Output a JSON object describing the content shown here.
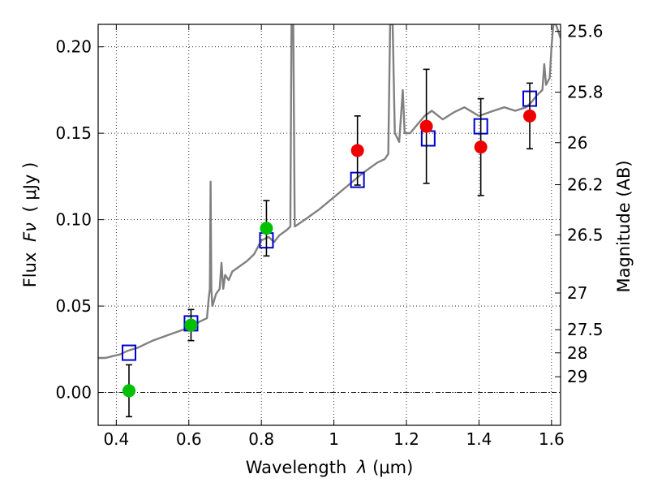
{
  "chart_data": {
    "type": "scatter",
    "xlabel_prefix": "Wavelength",
    "xlabel_symbol": "λ",
    "xlabel_unit": "(μm)",
    "ylabel_prefix": "Flux",
    "ylabel_symbol": "Fν",
    "ylabel_unit": "( μJy )",
    "y2label": "Magnitude (AB)",
    "xlim": [
      0.35,
      1.625
    ],
    "ylim": [
      -0.019,
      0.213
    ],
    "grid": true,
    "x_ticks": [
      0.4,
      0.6,
      0.8,
      1.0,
      1.2,
      1.4,
      1.6
    ],
    "x_tick_labels": [
      "0.4",
      "0.6",
      "0.8",
      "1",
      "1.2",
      "1.4",
      "1.6"
    ],
    "y_ticks": [
      0.0,
      0.05,
      0.1,
      0.15,
      0.2
    ],
    "y_tick_labels": [
      "0.00",
      "0.05",
      "0.10",
      "0.15",
      "0.20"
    ],
    "mag_ticks": [
      25.6,
      25.8,
      26,
      26.2,
      26.5,
      27,
      27.5,
      28,
      29
    ],
    "mag_tick_labels": [
      "25.6",
      "25.8",
      "26",
      "26.2",
      "26.5",
      "27",
      "27.5",
      "28",
      "29"
    ],
    "zero_line": 0.0,
    "colors": {
      "spectrum": "#808080",
      "model_box": "#0000cc",
      "optical": "#00c000",
      "infrared": "#ee0000",
      "errorbar": "#000000"
    },
    "series": [
      {
        "name": "observed_optical",
        "marker": "circle",
        "points": [
          {
            "x": 0.435,
            "y": 0.001,
            "err": 0.015
          },
          {
            "x": 0.606,
            "y": 0.039,
            "err": 0.009
          },
          {
            "x": 0.814,
            "y": 0.095,
            "err": 0.016
          }
        ]
      },
      {
        "name": "observed_infrared",
        "marker": "circle",
        "points": [
          {
            "x": 1.065,
            "y": 0.14,
            "err": 0.02
          },
          {
            "x": 1.255,
            "y": 0.154,
            "err": 0.033
          },
          {
            "x": 1.405,
            "y": 0.142,
            "err": 0.028
          },
          {
            "x": 1.54,
            "y": 0.16,
            "err": 0.019
          }
        ]
      },
      {
        "name": "model_photometry",
        "marker": "square",
        "points": [
          {
            "x": 0.435,
            "y": 0.023
          },
          {
            "x": 0.606,
            "y": 0.04
          },
          {
            "x": 0.814,
            "y": 0.088
          },
          {
            "x": 1.065,
            "y": 0.123
          },
          {
            "x": 1.26,
            "y": 0.147
          },
          {
            "x": 1.405,
            "y": 0.154
          },
          {
            "x": 1.54,
            "y": 0.17
          }
        ]
      }
    ],
    "spectrum": [
      [
        0.35,
        0.02
      ],
      [
        0.37,
        0.02
      ],
      [
        0.39,
        0.021
      ],
      [
        0.41,
        0.022
      ],
      [
        0.43,
        0.024
      ],
      [
        0.46,
        0.026
      ],
      [
        0.5,
        0.03
      ],
      [
        0.54,
        0.033
      ],
      [
        0.58,
        0.036
      ],
      [
        0.61,
        0.038
      ],
      [
        0.63,
        0.041
      ],
      [
        0.65,
        0.043
      ],
      [
        0.655,
        0.055
      ],
      [
        0.658,
        0.06
      ],
      [
        0.66,
        0.122
      ],
      [
        0.662,
        0.06
      ],
      [
        0.665,
        0.05
      ],
      [
        0.675,
        0.057
      ],
      [
        0.685,
        0.06
      ],
      [
        0.69,
        0.075
      ],
      [
        0.695,
        0.06
      ],
      [
        0.7,
        0.068
      ],
      [
        0.71,
        0.065
      ],
      [
        0.72,
        0.07
      ],
      [
        0.74,
        0.073
      ],
      [
        0.76,
        0.076
      ],
      [
        0.78,
        0.08
      ],
      [
        0.8,
        0.088
      ],
      [
        0.82,
        0.09
      ],
      [
        0.835,
        0.087
      ],
      [
        0.85,
        0.091
      ],
      [
        0.87,
        0.094
      ],
      [
        0.88,
        0.096
      ],
      [
        0.883,
        0.213
      ],
      [
        0.888,
        0.213
      ],
      [
        0.892,
        0.096
      ],
      [
        0.92,
        0.1
      ],
      [
        0.96,
        0.106
      ],
      [
        1.0,
        0.113
      ],
      [
        1.04,
        0.12
      ],
      [
        1.08,
        0.127
      ],
      [
        1.1,
        0.13
      ],
      [
        1.12,
        0.133
      ],
      [
        1.14,
        0.135
      ],
      [
        1.15,
        0.138
      ],
      [
        1.155,
        0.213
      ],
      [
        1.162,
        0.213
      ],
      [
        1.168,
        0.15
      ],
      [
        1.18,
        0.145
      ],
      [
        1.19,
        0.175
      ],
      [
        1.195,
        0.15
      ],
      [
        1.21,
        0.15
      ],
      [
        1.23,
        0.155
      ],
      [
        1.25,
        0.16
      ],
      [
        1.27,
        0.163
      ],
      [
        1.3,
        0.158
      ],
      [
        1.33,
        0.162
      ],
      [
        1.36,
        0.165
      ],
      [
        1.4,
        0.16
      ],
      [
        1.44,
        0.163
      ],
      [
        1.47,
        0.165
      ],
      [
        1.5,
        0.163
      ],
      [
        1.53,
        0.165
      ],
      [
        1.545,
        0.168
      ],
      [
        1.56,
        0.172
      ],
      [
        1.575,
        0.175
      ],
      [
        1.58,
        0.19
      ],
      [
        1.585,
        0.178
      ],
      [
        1.595,
        0.182
      ],
      [
        1.6,
        0.2
      ],
      [
        1.605,
        0.213
      ],
      [
        1.612,
        0.213
      ],
      [
        1.625,
        0.205
      ]
    ]
  }
}
